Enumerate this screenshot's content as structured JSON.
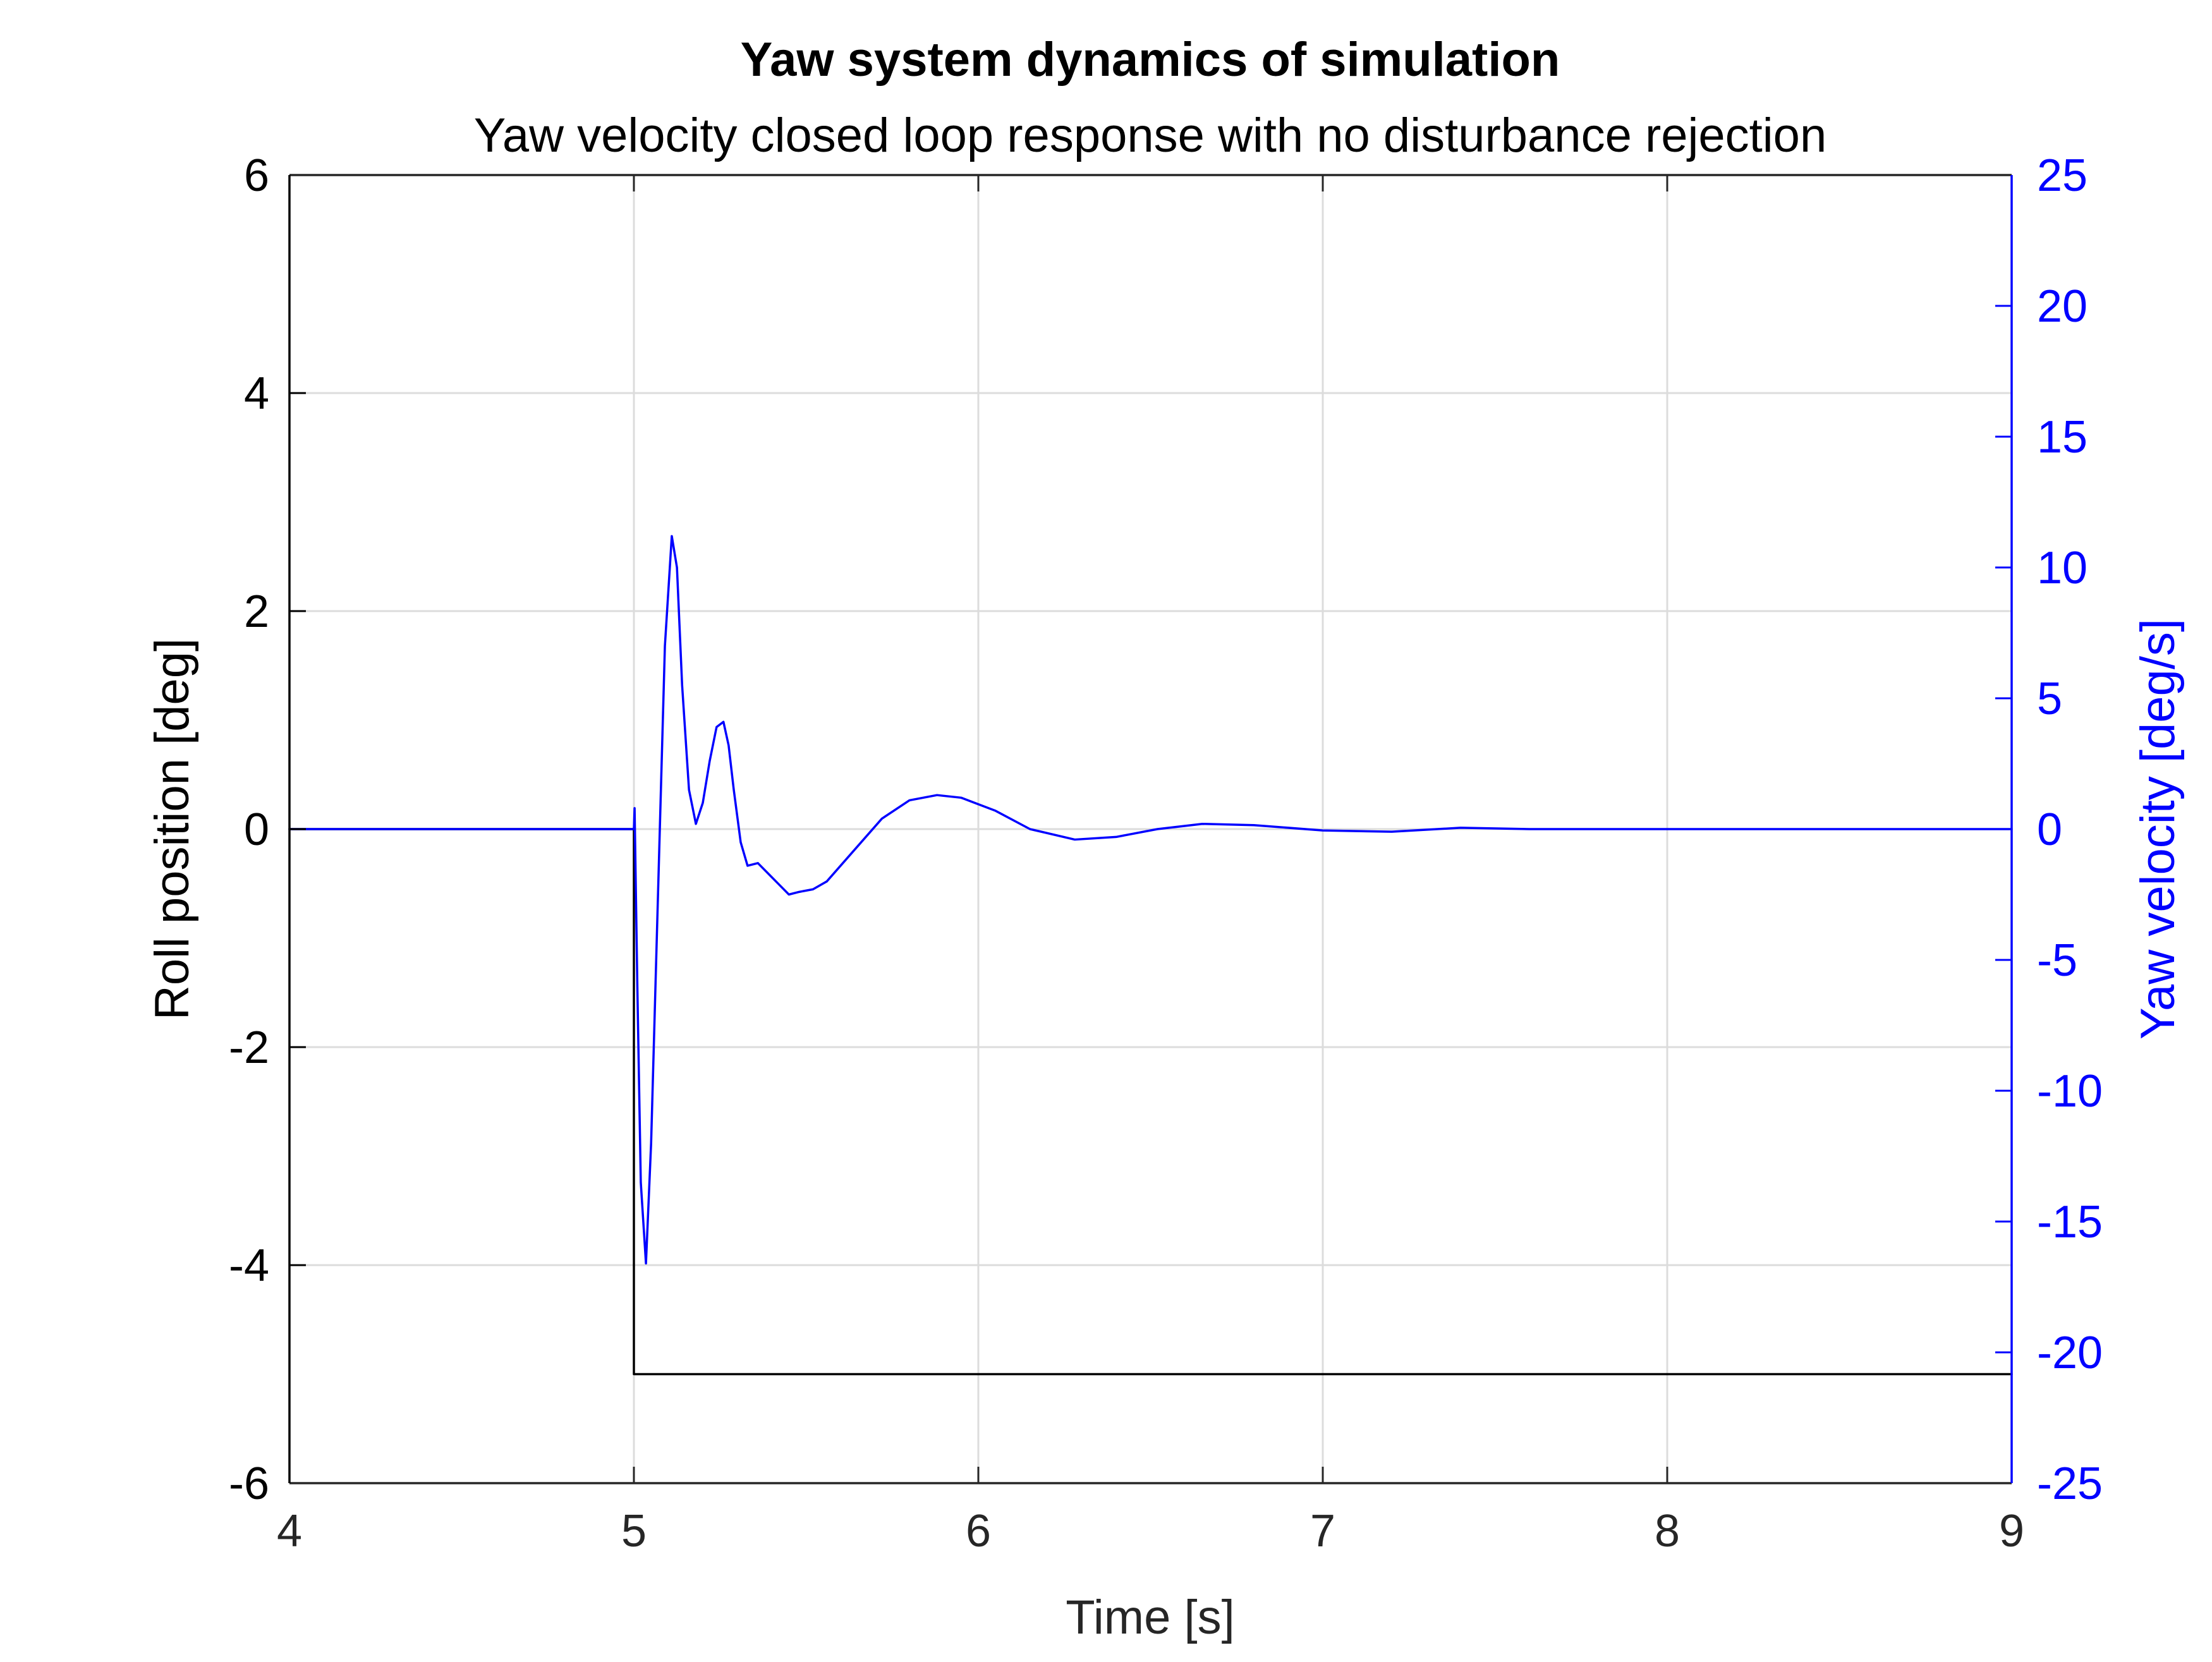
{
  "chart_data": {
    "type": "line",
    "title": "Yaw system dynamics of simulation",
    "subtitle": "Yaw velocity closed loop response with no disturbance rejection",
    "xlabel": "Time [s]",
    "ylabel_left": "Roll position [deg]",
    "ylabel_right": "Yaw velocity [deg/s]",
    "xlim": [
      4,
      9
    ],
    "ylim_left": [
      -6,
      6
    ],
    "ylim_right": [
      -25,
      25
    ],
    "xticks": [
      "4",
      "5",
      "6",
      "7",
      "8",
      "9"
    ],
    "yticks_left": [
      "-6",
      "-4",
      "-2",
      "0",
      "2",
      "4",
      "6"
    ],
    "yticks_right": [
      "-25",
      "-20",
      "-15",
      "-10",
      "-5",
      "0",
      "5",
      "10",
      "15",
      "20",
      "25"
    ],
    "grid": true,
    "colors": {
      "left_axis": "#000000",
      "right_axis": "#0000ff",
      "grid": "#dcdcdc"
    },
    "series": [
      {
        "axis": "left",
        "color": "#000000",
        "x": [
          4.0,
          5.0,
          5.0,
          9.0
        ],
        "y": [
          0,
          0,
          -5,
          -5
        ]
      },
      {
        "axis": "right",
        "color": "#0000ff",
        "x": [
          4.0,
          4.5,
          5.0,
          5.002,
          5.01,
          5.02,
          5.035,
          5.05,
          5.07,
          5.09,
          5.11,
          5.125,
          5.14,
          5.16,
          5.18,
          5.2,
          5.22,
          5.24,
          5.26,
          5.275,
          5.29,
          5.31,
          5.33,
          5.36,
          5.39,
          5.42,
          5.45,
          5.48,
          5.52,
          5.56,
          5.6,
          5.66,
          5.72,
          5.8,
          5.88,
          5.95,
          6.05,
          6.15,
          6.28,
          6.4,
          6.52,
          6.65,
          6.8,
          7.0,
          7.2,
          7.4,
          7.6,
          8.0,
          8.5,
          9.0
        ],
        "y": [
          0,
          0,
          0,
          0.8,
          -6.0,
          -13.5,
          -16.6,
          -12.0,
          -2.5,
          7.0,
          11.2,
          10.0,
          5.5,
          1.5,
          0.2,
          1.0,
          2.6,
          3.9,
          4.1,
          3.2,
          1.5,
          -0.5,
          -1.4,
          -1.3,
          -1.7,
          -2.1,
          -2.5,
          -2.4,
          -2.3,
          -2.0,
          -1.4,
          -0.5,
          0.4,
          1.1,
          1.3,
          1.2,
          0.7,
          0.0,
          -0.4,
          -0.3,
          0.0,
          0.2,
          0.15,
          -0.05,
          -0.1,
          0.05,
          0.0,
          0.0,
          0.0,
          0.0
        ]
      }
    ]
  }
}
